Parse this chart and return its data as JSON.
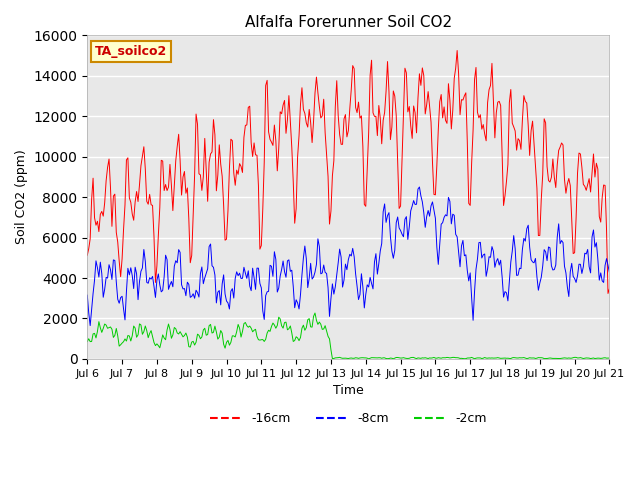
{
  "title": "Alfalfa Forerunner Soil CO2",
  "xlabel": "Time",
  "ylabel": "Soil CO2 (ppm)",
  "ylim": [
    0,
    16000
  ],
  "yticks": [
    0,
    2000,
    4000,
    6000,
    8000,
    10000,
    12000,
    14000,
    16000
  ],
  "label_box": "TA_soilco2",
  "legend_labels": [
    "-16cm",
    "-8cm",
    "-2cm"
  ],
  "line_colors": [
    "#ff0000",
    "#0000ff",
    "#00cc00"
  ],
  "background_color": "#e8e8e8",
  "figure_bg": "#ffffff",
  "x_tick_labels": [
    "Jul 6",
    "Jul 7",
    "Jul 8",
    "Jul 9",
    "Jul 10",
    "Jul 11",
    "Jul 12",
    "Jul 13",
    "Jul 14",
    "Jul 15",
    "Jul 16",
    "Jul 17",
    "Jul 18",
    "Jul 19",
    "Jul 20",
    "Jul 21"
  ],
  "x_tick_positions": [
    0,
    24,
    48,
    72,
    96,
    120,
    144,
    168,
    192,
    216,
    240,
    264,
    288,
    312,
    336,
    360
  ]
}
